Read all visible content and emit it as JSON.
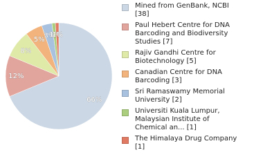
{
  "chart_data": {
    "type": "pie",
    "categories": [
      "Mined from GenBank, NCBI [38]",
      "Paul Hebert Centre for DNA Barcoding and Biodiversity Studies [7]",
      "Rajiv Gandhi Centre for Biotechnology [5]",
      "Canadian Centre for DNA Barcoding [3]",
      "Sri Ramaswamy Memorial University [2]",
      "Universiti Kuala Lumpur, Malaysian Institute of Chemical an... [1]",
      "The Himalaya Drug Company [1]"
    ],
    "values": [
      66,
      12,
      8,
      5,
      3,
      1,
      1
    ],
    "value_labels": [
      "66%",
      "12%",
      "8%",
      "5%",
      "3%",
      "1%",
      "1%"
    ],
    "colors": [
      "#cbd7e4",
      "#e2a59d",
      "#dfe9a8",
      "#f2b47c",
      "#a8c1de",
      "#abcd7e",
      "#e07a62"
    ],
    "legend": "right"
  }
}
